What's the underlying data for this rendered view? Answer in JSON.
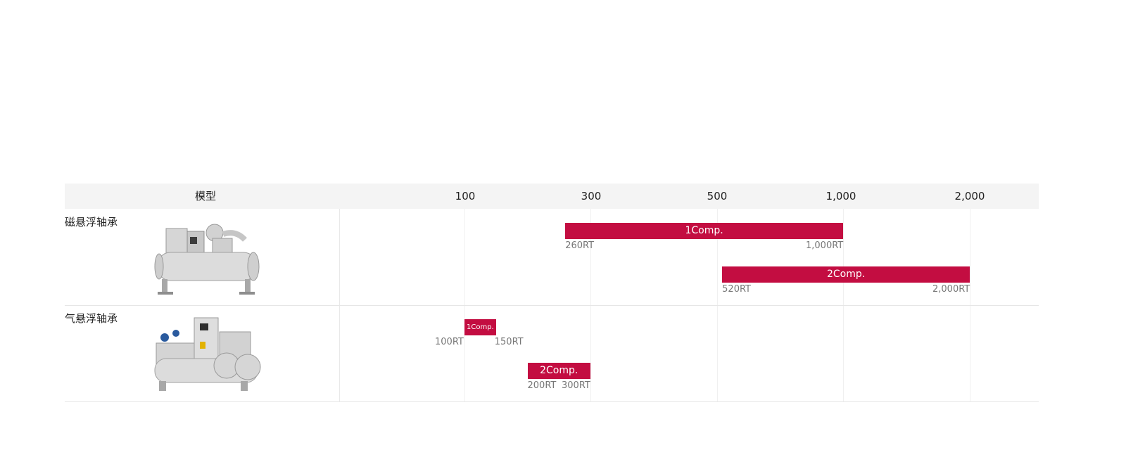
{
  "header": {
    "model": "模型",
    "ticks": [
      "100",
      "300",
      "500",
      "1,000",
      "2,000"
    ]
  },
  "colors": {
    "bar": "#c30d41",
    "header_bg": "#f4f4f4"
  },
  "chart_data": {
    "type": "bar",
    "orientation": "horizontal-range",
    "x_ticks": [
      "100",
      "300",
      "500",
      "1,000",
      "2,000"
    ],
    "unit": "RT",
    "rows": [
      {
        "label": "磁悬浮轴承",
        "image": "magnetic-bearing-chiller",
        "bars": [
          {
            "label": "1Comp.",
            "min": 260,
            "max": 1000,
            "min_label": "260RT",
            "max_label": "1,000RT"
          },
          {
            "label": "2Comp.",
            "min": 520,
            "max": 2000,
            "min_label": "520RT",
            "max_label": "2,000RT"
          }
        ]
      },
      {
        "label": "气悬浮轴承",
        "image": "gas-bearing-chiller",
        "bars": [
          {
            "label": "1Comp.",
            "min": 100,
            "max": 150,
            "min_label": "100RT",
            "max_label": "150RT"
          },
          {
            "label": "2Comp.",
            "min": 200,
            "max": 300,
            "min_label": "200RT",
            "max_label": "300RT"
          }
        ]
      }
    ]
  }
}
